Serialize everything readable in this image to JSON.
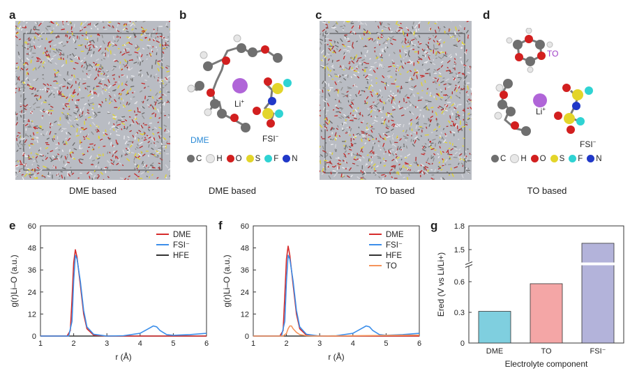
{
  "panels": {
    "a": {
      "label": "a",
      "caption": "DME based"
    },
    "b": {
      "label": "b",
      "caption": "DME based",
      "li": "Li",
      "li_sup": "+",
      "dme": "DME",
      "fsi": "FSI",
      "fsi_sup": "−"
    },
    "c": {
      "label": "c",
      "caption": "TO based"
    },
    "d": {
      "label": "d",
      "caption": "TO based",
      "li": "Li",
      "li_sup": "+",
      "to": "TO",
      "fsi": "FSI",
      "fsi_sup": "−"
    },
    "e": {
      "label": "e"
    },
    "f": {
      "label": "f"
    },
    "g": {
      "label": "g"
    }
  },
  "atom_legend": [
    {
      "symbol": "C",
      "color": "#6f6f6f"
    },
    {
      "symbol": "H",
      "color": "#e8e8e8"
    },
    {
      "symbol": "O",
      "color": "#d21f1f"
    },
    {
      "symbol": "S",
      "color": "#e3d52a"
    },
    {
      "symbol": "F",
      "color": "#2fd3d3"
    },
    {
      "symbol": "N",
      "color": "#2038c8"
    }
  ],
  "colors": {
    "DME": "#d62b2b",
    "FSI": "#3b8eea",
    "HFE": "#333333",
    "TO": "#f5935a",
    "bar_DME": "#7fcfdf",
    "bar_TO": "#f4a6a6",
    "bar_FSI": "#b3b3da",
    "li": "#b065d8",
    "dme_label": "#2a8ad6",
    "to_label": "#a040c8"
  },
  "chart_data": [
    {
      "type": "line",
      "panel": "e",
      "xlabel": "r (Å)",
      "ylabel": "g(r)Li–O (a.u.)",
      "xlim": [
        1,
        6
      ],
      "ylim": [
        0,
        60
      ],
      "xticks": [
        1,
        2,
        3,
        4,
        5,
        6
      ],
      "yticks": [
        0,
        12,
        24,
        36,
        48,
        60
      ],
      "legend": "top-right",
      "series": [
        {
          "name": "DME",
          "x": [
            1,
            1.8,
            1.9,
            1.95,
            2.0,
            2.05,
            2.1,
            2.2,
            2.3,
            2.4,
            2.6,
            3.0,
            6
          ],
          "y": [
            0,
            0,
            3,
            20,
            40,
            47,
            43,
            28,
            12,
            4,
            0.5,
            0,
            0
          ]
        },
        {
          "name": "FSI⁻",
          "x": [
            1,
            1.85,
            1.95,
            2.0,
            2.05,
            2.1,
            2.2,
            2.3,
            2.4,
            2.6,
            3.0,
            3.5,
            4.0,
            4.2,
            4.4,
            4.5,
            4.6,
            4.8,
            5.0,
            5.5,
            6
          ],
          "y": [
            0,
            0,
            8,
            30,
            44,
            42,
            30,
            14,
            5,
            1,
            0,
            0.2,
            1.5,
            3.5,
            5.5,
            5,
            3,
            0.8,
            0.4,
            0.8,
            1.5
          ]
        },
        {
          "name": "HFE",
          "x": [
            1,
            6
          ],
          "y": [
            0,
            0
          ]
        }
      ]
    },
    {
      "type": "line",
      "panel": "f",
      "xlabel": "r (Å)",
      "ylabel": "g(r)Li–O (a.u.)",
      "xlim": [
        1,
        6
      ],
      "ylim": [
        0,
        60
      ],
      "xticks": [
        1,
        2,
        3,
        4,
        5,
        6
      ],
      "yticks": [
        0,
        12,
        24,
        36,
        48,
        60
      ],
      "legend": "top-right",
      "series": [
        {
          "name": "DME",
          "x": [
            1,
            1.8,
            1.9,
            1.95,
            2.0,
            2.05,
            2.1,
            2.2,
            2.3,
            2.4,
            2.6,
            3.0,
            6
          ],
          "y": [
            0,
            0,
            3,
            22,
            42,
            49,
            44,
            28,
            12,
            4,
            0.5,
            0,
            0
          ]
        },
        {
          "name": "FSI⁻",
          "x": [
            1,
            1.85,
            1.95,
            2.0,
            2.05,
            2.1,
            2.2,
            2.3,
            2.4,
            2.6,
            3.0,
            3.5,
            4.0,
            4.2,
            4.4,
            4.5,
            4.6,
            4.8,
            5.0,
            5.5,
            6
          ],
          "y": [
            0,
            0,
            8,
            30,
            44,
            42,
            30,
            14,
            5,
            1,
            0,
            0.2,
            1.5,
            3.5,
            5.5,
            5,
            3,
            0.8,
            0.4,
            0.8,
            1.5
          ]
        },
        {
          "name": "HFE",
          "x": [
            1,
            6
          ],
          "y": [
            0,
            0
          ]
        },
        {
          "name": "TO",
          "x": [
            1,
            1.9,
            2.0,
            2.05,
            2.1,
            2.15,
            2.2,
            2.3,
            2.4,
            2.6,
            3.0,
            6
          ],
          "y": [
            0,
            0,
            1.5,
            4,
            5.5,
            5.5,
            4,
            2,
            0.8,
            0.2,
            0,
            0.5
          ]
        }
      ]
    },
    {
      "type": "bar",
      "panel": "g",
      "xlabel": "Electrolyte component",
      "ylabel": "Ered (V vs Li/Li+)",
      "categories": [
        "DME",
        "TO",
        "FSI⁻"
      ],
      "values": [
        0.31,
        0.58,
        1.58
      ],
      "yticks": [
        "0",
        "0.3",
        "0.6",
        "1.5",
        "1.8"
      ],
      "broken_axis": true
    }
  ]
}
